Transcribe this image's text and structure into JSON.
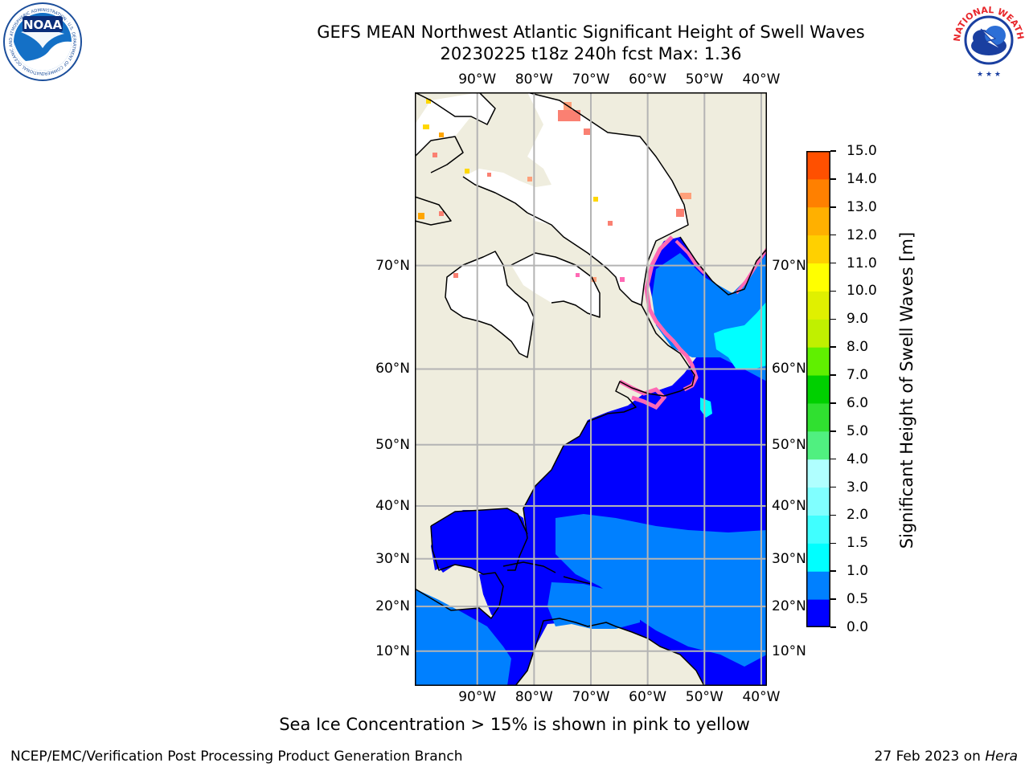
{
  "title": {
    "line1": "GEFS MEAN Northwest Atlantic Significant Height of Swell Waves",
    "line2": "20230225 t18z 240h fcst   Max: 1.36"
  },
  "logos": {
    "noaa": {
      "center_text": "NOAA",
      "ring_text": "NATIONAL OCEANIC AND ATMOSPHERIC ADMINISTRATION · U.S. DEPARTMENT OF COMMERCE"
    },
    "nws": {
      "ring_text": "NATIONAL WEATHER SERVICE"
    }
  },
  "map": {
    "region": "Northwest Atlantic",
    "projection": "Mercator",
    "lon_range": [
      -101,
      -39
    ],
    "lat_range": [
      2,
      80
    ],
    "lon_ticks": [
      "90°W",
      "80°W",
      "70°W",
      "60°W",
      "50°W",
      "40°W"
    ],
    "lon_tick_values": [
      -90,
      -80,
      -70,
      -60,
      -50,
      -40
    ],
    "lat_ticks": [
      "70°N",
      "60°N",
      "50°N",
      "40°N",
      "30°N",
      "20°N",
      "10°N"
    ],
    "lat_tick_values": [
      70,
      60,
      50,
      40,
      30,
      20,
      10
    ],
    "land_color": "#efedde",
    "grid_color": "#b4b4b4",
    "ocean_colors": {
      "0.0-0.5": "#0000ff",
      "0.5-1.0": "#0080ff",
      "1.0-1.5": "#00ffff"
    },
    "sea_ice_color": "#ff69b4"
  },
  "colorbar": {
    "label": "Significant Height of Swell Waves [m]",
    "ticks": [
      "0.0",
      "0.5",
      "1.0",
      "1.5",
      "2.0",
      "3.0",
      "4.0",
      "5.0",
      "6.0",
      "7.0",
      "8.0",
      "9.0",
      "10.0",
      "11.0",
      "12.0",
      "13.0",
      "14.0",
      "15.0"
    ],
    "colors": [
      "#0000ff",
      "#0080ff",
      "#00ffff",
      "#40ffff",
      "#80ffff",
      "#b0ffff",
      "#50f080",
      "#30e030",
      "#00d000",
      "#60f000",
      "#c0f000",
      "#e0f000",
      "#ffff00",
      "#ffd000",
      "#ffb000",
      "#ff8000",
      "#ff5000",
      "#ff2000",
      "#ff0000"
    ]
  },
  "footer": {
    "note": "Sea Ice Concentration > 15% is shown in pink to yellow",
    "credit": "NCEP/EMC/Verification Post Processing Product Generation Branch",
    "date": "27 Feb 2023 on",
    "machine": "Hera"
  }
}
